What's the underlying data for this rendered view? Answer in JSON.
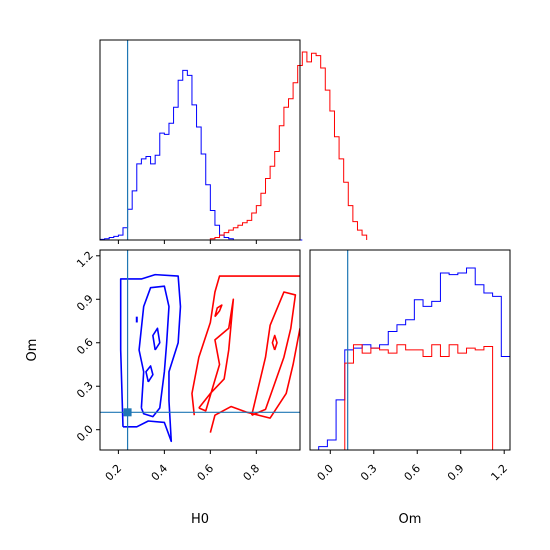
{
  "chart_data": {
    "type": "corner",
    "parameters": [
      "H0",
      "Om"
    ],
    "truth": {
      "H0": 0.24,
      "Om": 0.12
    },
    "series": [
      {
        "color": "#0000ff"
      },
      {
        "color": "#ff0000"
      }
    ],
    "axes": {
      "H0": {
        "range": [
          0.12,
          0.99
        ],
        "ticks": [
          0.2,
          0.4,
          0.6,
          0.8
        ],
        "tick_labels": [
          "0.2",
          "0.4",
          "0.6",
          "0.8"
        ]
      },
      "Om": {
        "range": [
          -0.14,
          1.24
        ],
        "ticks": [
          0.0,
          0.3,
          0.6,
          0.9,
          1.2
        ],
        "tick_labels": [
          "0.0",
          "0.3",
          "0.6",
          "0.9",
          "1.2"
        ]
      }
    },
    "xlabels": {
      "h0": "H0",
      "om": "Om"
    },
    "ylabel": "Om",
    "hist_h0": {
      "x_start": 0.12,
      "bin_width": 0.02,
      "blue": [
        0.5,
        1,
        2,
        3,
        4,
        10,
        25,
        40,
        62,
        66,
        68,
        62,
        69,
        87,
        86,
        95,
        108,
        130,
        138,
        134,
        110,
        92,
        70,
        45,
        24,
        12,
        4,
        2,
        1,
        0,
        0,
        0,
        0,
        0,
        0,
        0,
        0,
        0,
        0,
        0,
        0,
        0,
        0,
        0
      ],
      "red": [
        0,
        0,
        0,
        0,
        0,
        0,
        0,
        0,
        0,
        0,
        0,
        0,
        0,
        0,
        0,
        0,
        0,
        0,
        0,
        0,
        0,
        0,
        0,
        0,
        1,
        2,
        4,
        6,
        8,
        10,
        12,
        14,
        16,
        22,
        28,
        38,
        50,
        60,
        72,
        93,
        108,
        115,
        128,
        142,
        153,
        145,
        152,
        150,
        140,
        122,
        105,
        84,
        66,
        47,
        28,
        15,
        8,
        4
      ]
    },
    "hist_om": {
      "x_start": -0.08,
      "bin_width": 0.06,
      "blue": [
        2,
        6,
        30,
        60,
        61,
        63,
        61,
        63,
        71,
        75,
        78,
        90,
        86,
        89,
        106,
        105,
        106,
        109,
        99,
        94,
        92,
        56,
        0
      ],
      "red": [
        0,
        0,
        0,
        52,
        63,
        58,
        61,
        60,
        58,
        63,
        60,
        60,
        56,
        63,
        56,
        63,
        58,
        61,
        60,
        62,
        0,
        0,
        0
      ]
    },
    "contours": {
      "blue_outer": [
        [
          0.22,
          0.02
        ],
        [
          0.21,
          0.55
        ],
        [
          0.21,
          1.04
        ],
        [
          0.25,
          1.04
        ],
        [
          0.3,
          1.04
        ],
        [
          0.36,
          1.07
        ],
        [
          0.46,
          1.06
        ],
        [
          0.47,
          0.85
        ],
        [
          0.46,
          0.6
        ],
        [
          0.42,
          0.4
        ],
        [
          0.42,
          0.2
        ],
        [
          0.43,
          -0.08
        ],
        [
          0.4,
          0.05
        ],
        [
          0.33,
          0.06
        ],
        [
          0.28,
          0.02
        ],
        [
          0.22,
          0.02
        ]
      ],
      "blue_inner": [
        [
          0.3,
          0.15
        ],
        [
          0.31,
          0.4
        ],
        [
          0.29,
          0.55
        ],
        [
          0.31,
          0.85
        ],
        [
          0.34,
          0.98
        ],
        [
          0.4,
          0.99
        ],
        [
          0.42,
          0.85
        ],
        [
          0.41,
          0.6
        ],
        [
          0.4,
          0.4
        ],
        [
          0.38,
          0.15
        ],
        [
          0.35,
          0.09
        ],
        [
          0.31,
          0.11
        ],
        [
          0.3,
          0.15
        ]
      ],
      "blue_small": [
        [
          [
            0.36,
            0.55
          ],
          [
            0.38,
            0.6
          ],
          [
            0.37,
            0.7
          ],
          [
            0.35,
            0.65
          ],
          [
            0.36,
            0.55
          ]
        ],
        [
          [
            0.33,
            0.33
          ],
          [
            0.35,
            0.38
          ],
          [
            0.34,
            0.44
          ],
          [
            0.32,
            0.4
          ],
          [
            0.33,
            0.33
          ]
        ]
      ],
      "blue_ticks": [
        [
          [
            0.28,
            0.78
          ],
          [
            0.28,
            0.74
          ]
        ]
      ],
      "red_outer": [
        [
          0.53,
          0.1
        ],
        [
          0.52,
          0.25
        ],
        [
          0.55,
          0.5
        ],
        [
          0.6,
          0.74
        ],
        [
          0.62,
          0.95
        ],
        [
          0.64,
          1.06
        ],
        [
          0.99,
          1.06
        ]
      ],
      "red_lower": [
        [
          0.6,
          -0.02
        ],
        [
          0.62,
          0.1
        ],
        [
          0.69,
          0.16
        ],
        [
          0.76,
          0.12
        ],
        [
          0.86,
          0.08
        ],
        [
          0.93,
          0.25
        ],
        [
          0.96,
          0.45
        ],
        [
          0.99,
          0.7
        ]
      ],
      "red_inner": [
        [
          0.55,
          0.15
        ],
        [
          0.58,
          0.13
        ],
        [
          0.64,
          0.45
        ],
        [
          0.62,
          0.62
        ],
        [
          0.68,
          0.7
        ],
        [
          0.7,
          0.9
        ],
        [
          0.68,
          0.55
        ],
        [
          0.66,
          0.35
        ],
        [
          0.6,
          0.25
        ],
        [
          0.55,
          0.15
        ]
      ],
      "red_inner2": [
        [
          0.78,
          0.1
        ],
        [
          0.81,
          0.3
        ],
        [
          0.84,
          0.5
        ],
        [
          0.86,
          0.72
        ],
        [
          0.92,
          0.95
        ],
        [
          0.97,
          0.93
        ],
        [
          0.95,
          0.7
        ],
        [
          0.92,
          0.5
        ],
        [
          0.88,
          0.32
        ],
        [
          0.84,
          0.14
        ],
        [
          0.78,
          0.1
        ]
      ],
      "red_small": [
        [
          [
            0.62,
            0.78
          ],
          [
            0.64,
            0.82
          ],
          [
            0.65,
            0.86
          ],
          [
            0.63,
            0.84
          ],
          [
            0.62,
            0.78
          ]
        ],
        [
          [
            0.88,
            0.55
          ],
          [
            0.89,
            0.6
          ],
          [
            0.88,
            0.65
          ],
          [
            0.87,
            0.6
          ],
          [
            0.88,
            0.55
          ]
        ]
      ]
    }
  }
}
